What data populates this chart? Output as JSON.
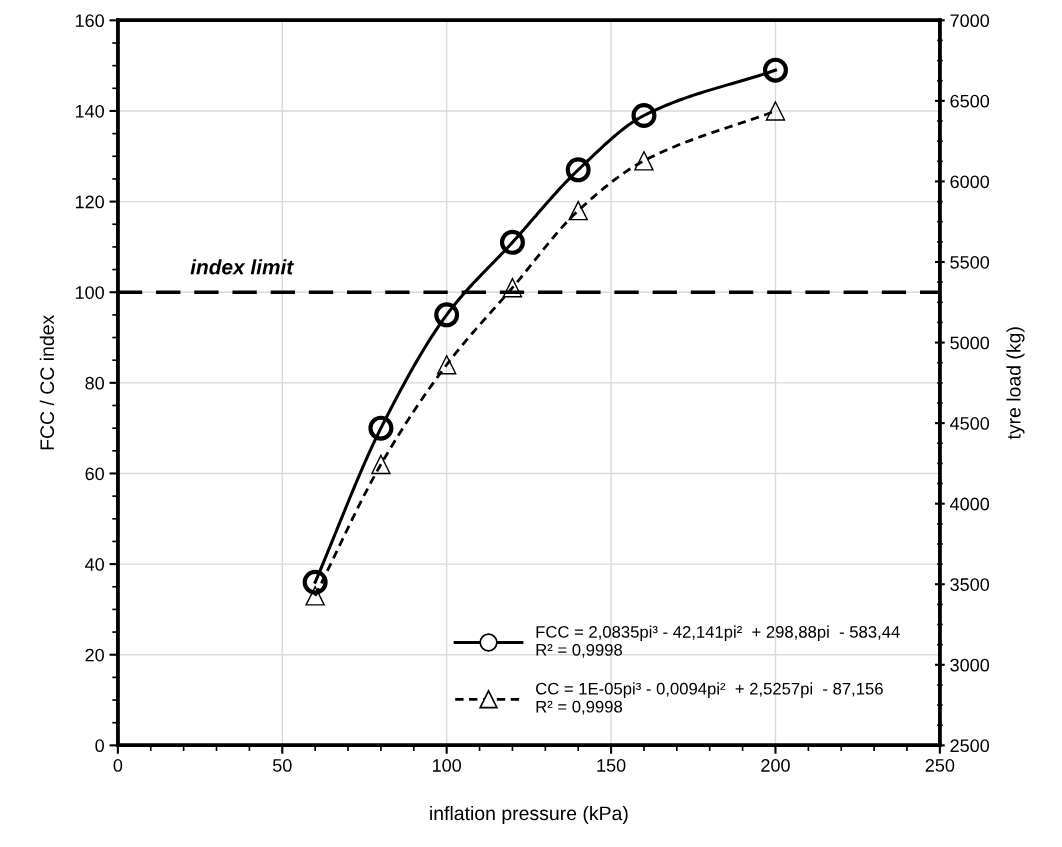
{
  "chart_data": {
    "type": "line",
    "xlabel": "inflation pressure (kPa)",
    "ylabel": "FCC / CC index",
    "y2label": "tyre load (kg)",
    "x": [
      60,
      80,
      100,
      120,
      140,
      160,
      200
    ],
    "series": [
      {
        "name": "FCC = 2,0835pi³ - 42,141pi²  + 298,88pi  - 583,44\nR² = 0,9998",
        "color": "#000000",
        "marker": "circle",
        "line_style": "solid",
        "values": [
          36,
          70,
          95,
          111,
          127,
          139,
          149
        ]
      },
      {
        "name": "CC = 1E-05pi³ - 0,0094pi²  + 2,5257pi  - 87,156\nR² = 0,9998",
        "color": "#000000",
        "marker": "triangle",
        "line_style": "dashed",
        "values": [
          33,
          62,
          84,
          101,
          118,
          129,
          140
        ]
      }
    ],
    "xlim": [
      0,
      250
    ],
    "xticks": [
      0,
      50,
      100,
      150,
      200,
      250
    ],
    "ylim": [
      0,
      160
    ],
    "yticks": [
      0,
      20,
      40,
      60,
      80,
      100,
      120,
      140,
      160
    ],
    "y2lim": [
      2500,
      7000
    ],
    "y2ticks": [
      2500,
      3000,
      3500,
      4000,
      4500,
      5000,
      5500,
      6000,
      6500,
      7000
    ],
    "ref_lines": [
      {
        "axis": "y",
        "value": 100,
        "label": "index limit",
        "color": "#000000",
        "line_style": "dashed"
      }
    ],
    "grid": true,
    "legend": "bottom right"
  }
}
